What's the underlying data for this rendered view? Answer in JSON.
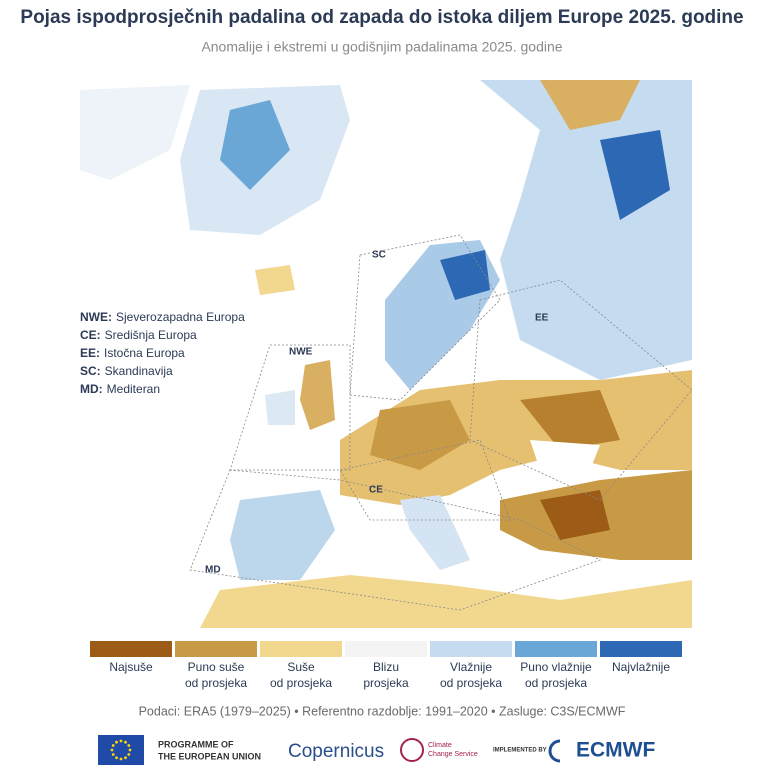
{
  "header": {
    "title": "Pojas ispodprosječnih padalina od zapada do istoka diljem Europe 2025. godine",
    "subtitle": "Anomalije i ekstremi u godišnjim padalinama 2025. godine"
  },
  "regions": [
    {
      "key": "NWE:",
      "name": "Sjeverozapadna Europa"
    },
    {
      "key": "CE:",
      "name": "Središnja Europa"
    },
    {
      "key": "EE:",
      "name": "Istočna Europa"
    },
    {
      "key": "SC:",
      "name": "Skandinavija"
    },
    {
      "key": "MD:",
      "name": "Mediteran"
    }
  ],
  "map_labels": [
    "SC",
    "NWE",
    "EE",
    "CE",
    "MD"
  ],
  "legend": [
    {
      "lines": [
        "Najsuše"
      ],
      "color": "#9c5b16"
    },
    {
      "lines": [
        "Puno suše",
        "od prosjeka"
      ],
      "color": "#c99a45"
    },
    {
      "lines": [
        "Suše",
        "od prosjeka"
      ],
      "color": "#f2d88f"
    },
    {
      "lines": [
        "Blizu",
        "prosjeka"
      ],
      "color": "#f4f4f4"
    },
    {
      "lines": [
        "Vlažnije",
        "od prosjeka"
      ],
      "color": "#c5dbef"
    },
    {
      "lines": [
        "Puno vlažnije",
        "od prosjeka"
      ],
      "color": "#6ba7d6"
    },
    {
      "lines": [
        "Najvlažnije"
      ],
      "color": "#2c68b4"
    }
  ],
  "credits": "Podaci: ERA5 (1979–2025) • Referentno razdoblje: 1991–2020 • Zasluge: C3S/ECMWF",
  "logos": {
    "eu": [
      "PROGRAMME OF",
      "THE EUROPEAN UNION"
    ],
    "copernicus": "Copernicus",
    "c3s": [
      "Climate",
      "Change Service"
    ],
    "implemented": "IMPLEMENTED BY",
    "ecmwf": "ECMWF"
  }
}
